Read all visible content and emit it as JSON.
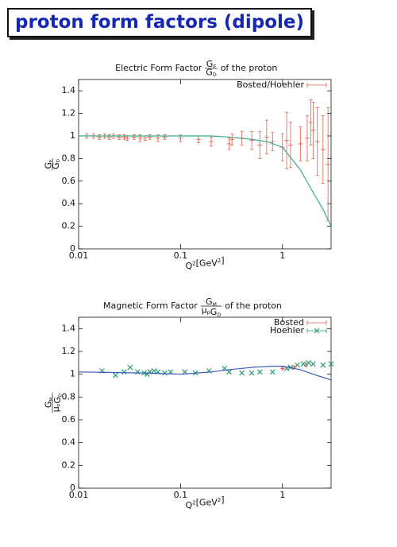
{
  "header": {
    "title": "proton form factors (dipole)"
  },
  "chart_data": [
    {
      "type": "scatter",
      "title": {
        "lead": "Electric Form Factor",
        "numerator": [
          {
            "text": "G",
            "sub": "E"
          }
        ],
        "denominator": [
          {
            "text": "G",
            "sub": "D"
          }
        ],
        "tail": "of the proton"
      },
      "y_label": {
        "numerator": [
          {
            "text": "G",
            "sub": "E"
          }
        ],
        "denominator": [
          {
            "text": "G",
            "sub": "D"
          }
        ]
      },
      "x_label": [
        {
          "text": "Q",
          "sup": "2"
        },
        {
          "text": "[GeV",
          "sup": "2"
        },
        {
          "text": "]"
        }
      ],
      "log_x": true,
      "xlim": [
        0.01,
        3
      ],
      "ylim": [
        0,
        1.5
      ],
      "xticks": [
        0.01,
        0.1,
        1
      ],
      "yticks": [
        0,
        0.2,
        0.4,
        0.6,
        0.8,
        1,
        1.2,
        1.4
      ],
      "series": [
        {
          "name": "Bosted/Hoehler",
          "color": "#e0604a",
          "marker": "plus",
          "x": [
            0.012,
            0.014,
            0.016,
            0.018,
            0.02,
            0.022,
            0.025,
            0.028,
            0.03,
            0.035,
            0.04,
            0.045,
            0.05,
            0.06,
            0.07,
            0.1,
            0.15,
            0.2,
            0.3,
            0.32,
            0.4,
            0.5,
            0.6,
            0.7,
            0.8,
            1.0,
            1.1,
            1.2,
            1.5,
            1.75,
            1.9,
            2.0,
            2.2,
            2.5,
            2.8
          ],
          "values": [
            1.0,
            1.0,
            0.99,
            1.0,
            0.99,
            1.0,
            0.99,
            0.99,
            0.98,
            0.99,
            0.98,
            0.98,
            0.99,
            0.98,
            0.99,
            0.98,
            0.97,
            0.95,
            0.93,
            0.97,
            0.98,
            0.96,
            0.92,
            0.99,
            0.95,
            0.9,
            0.96,
            0.92,
            0.93,
            0.98,
            1.12,
            1.05,
            0.95,
            0.88,
            0.75
          ],
          "errors": [
            0.02,
            0.02,
            0.02,
            0.02,
            0.02,
            0.02,
            0.02,
            0.02,
            0.02,
            0.02,
            0.03,
            0.02,
            0.02,
            0.03,
            0.02,
            0.03,
            0.03,
            0.04,
            0.05,
            0.05,
            0.06,
            0.08,
            0.12,
            0.15,
            0.08,
            0.12,
            0.25,
            0.2,
            0.15,
            0.2,
            0.2,
            0.25,
            0.3,
            0.3,
            0.5
          ]
        },
        {
          "color": "#3aaa8c",
          "style": "line",
          "x": [
            0.01,
            0.05,
            0.1,
            0.2,
            0.3,
            0.5,
            0.7,
            1,
            1.5,
            2,
            2.5,
            3
          ],
          "values": [
            1,
            1,
            1,
            1,
            0.99,
            0.97,
            0.95,
            0.9,
            0.7,
            0.5,
            0.35,
            0.2
          ]
        }
      ]
    },
    {
      "type": "scatter",
      "title": {
        "lead": "Magnetic Form Factor",
        "numerator": [
          {
            "text": "G",
            "sub": "M"
          }
        ],
        "denominator": [
          {
            "text": "μ",
            "sub": "p"
          },
          {
            "text": "G",
            "sub": "D"
          }
        ],
        "tail": "of the proton"
      },
      "y_label": {
        "numerator": [
          {
            "text": "G",
            "sub": "M"
          }
        ],
        "denominator": [
          {
            "text": "μ",
            "sub": "p"
          },
          {
            "text": "G",
            "sub": "D"
          }
        ]
      },
      "x_label": [
        {
          "text": "Q",
          "sup": "2"
        },
        {
          "text": "[GeV",
          "sup": "2"
        },
        {
          "text": "]"
        }
      ],
      "log_x": true,
      "xlim": [
        0.01,
        3
      ],
      "ylim": [
        0,
        1.5
      ],
      "xticks": [
        0.01,
        0.1,
        1
      ],
      "yticks": [
        0,
        0.2,
        0.4,
        0.6,
        0.8,
        1,
        1.2,
        1.4
      ],
      "series": [
        {
          "name": "Bosted",
          "color": "#e0604a",
          "marker": "plus",
          "x": [
            1.0,
            1.3,
            1.7
          ],
          "values": [
            1.05,
            1.06,
            1.08
          ],
          "errors": [
            0.01,
            0.01,
            0.01
          ]
        },
        {
          "name": "Hoehler",
          "color": "#2a9a78",
          "marker": "x",
          "x": [
            0.017,
            0.023,
            0.028,
            0.032,
            0.038,
            0.044,
            0.047,
            0.05,
            0.055,
            0.06,
            0.07,
            0.08,
            0.11,
            0.14,
            0.19,
            0.27,
            0.3,
            0.4,
            0.5,
            0.6,
            0.8,
            1.1,
            1.2,
            1.4,
            1.6,
            1.8,
            2.0,
            2.5,
            3.0
          ],
          "values": [
            1.03,
            0.99,
            1.02,
            1.06,
            1.02,
            1.01,
            1.0,
            1.02,
            1.03,
            1.02,
            1.01,
            1.02,
            1.02,
            1.01,
            1.03,
            1.05,
            1.02,
            1.01,
            1.01,
            1.02,
            1.02,
            1.05,
            1.06,
            1.08,
            1.09,
            1.1,
            1.09,
            1.08,
            1.09
          ]
        },
        {
          "color": "#3a5bbf",
          "style": "line",
          "x": [
            0.01,
            0.05,
            0.1,
            0.2,
            0.3,
            0.5,
            0.8,
            1,
            1.5,
            2,
            3
          ],
          "values": [
            1.02,
            1.01,
            1.0,
            1.02,
            1.04,
            1.06,
            1.07,
            1.07,
            1.04,
            1.0,
            0.95
          ]
        }
      ]
    }
  ]
}
